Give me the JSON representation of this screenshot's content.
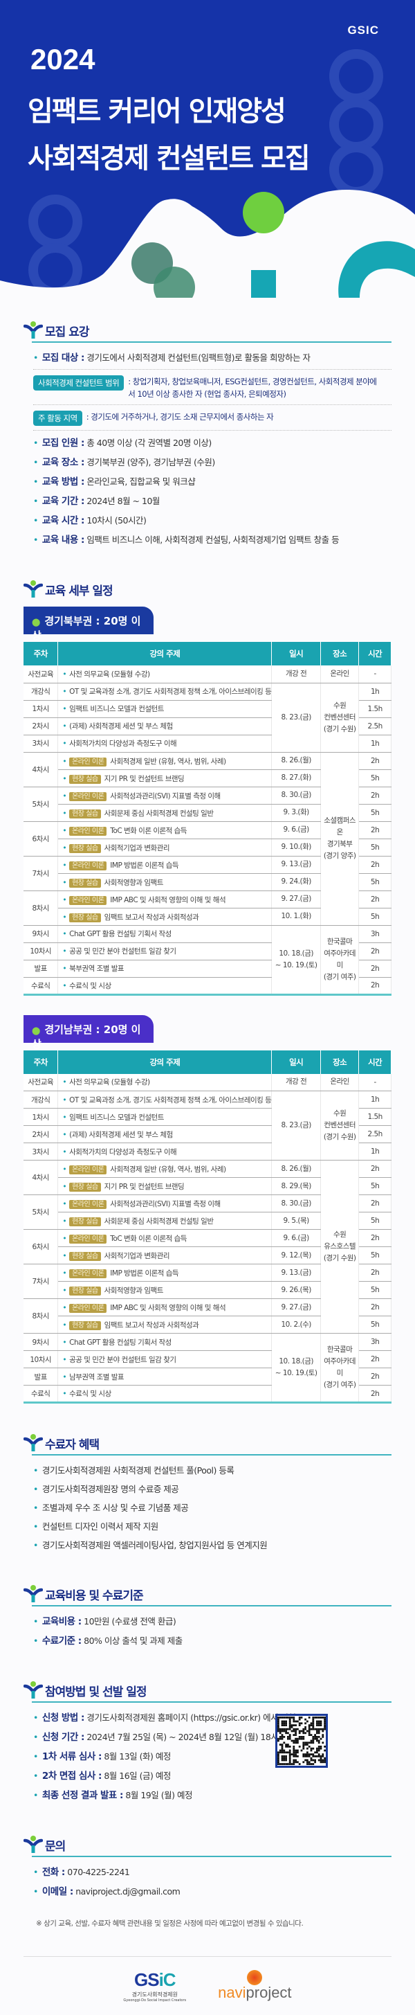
{
  "hero": {
    "logo": "GSIC",
    "year": "2024",
    "title_line1": "임팩트 커리어 인재양성",
    "title_line2": "사회적경제 컨설턴트 모집",
    "colors": {
      "bg": "#1533a8",
      "green": "#6fcf3f",
      "teal": "#16a6b4"
    }
  },
  "recruit": {
    "heading": "모집 요강",
    "target_label": "모집 대상 :",
    "target": "경기도에서 사회적경제 컨설턴트(임팩트형)로 활동을 희망하는 자",
    "scope_pill": "사회적경제 컨설턴트 범위",
    "scope": ": 창업기획자, 창업보육매니저, ESG컨설턴트, 경영컨설턴트, 사회적경제 분야에서 10년 이상 종사한 자 (현업 종사자, 은퇴예정자)",
    "area_pill": "주 활동 지역",
    "area": ": 경기도에 거주하거나, 경기도 소재 근무지에서 종사하는 자",
    "items": [
      {
        "label": "모집 인원 :",
        "value": "총 40명 이상 (각 권역별 20명 이상)"
      },
      {
        "label": "교육 장소 :",
        "value": "경기북부권 (양주), 경기남부권 (수원)"
      },
      {
        "label": "교육 방법 :",
        "value": "온라인교육, 집합교육 및 워크샵"
      },
      {
        "label": "교육 기간 :",
        "value": "2024년 8월 ~ 10월"
      },
      {
        "label": "교육 시간 :",
        "value": "10차시 (50시간)"
      },
      {
        "label": "교육 내용 :",
        "value": "임팩트 비즈니스 이해, 사회적경제 컨설팅, 사회적경제기업 임팩트 창출 등"
      }
    ]
  },
  "schedule": {
    "heading": "교육 세부 일정",
    "columns": [
      "주차",
      "강의 주제",
      "일시",
      "장소",
      "시간"
    ],
    "tables": [
      {
        "tab": "경기북부권 : 20명 이상",
        "tab_color": "#1a3aa0",
        "rows": [
          {
            "week": "사전교육",
            "topic": "사전 의무교육 (모듈형 수강)",
            "date": "개강 전",
            "place": "온라인",
            "hours": "-"
          },
          {
            "week": "개강식",
            "topic": "OT 및 교육과정 소개, 경기도 사회적경제 정책 소개, 아이스브레이킹 등",
            "date": "8. 23.(금)",
            "place": "수원\n컨벤션센터\n(경기 수원)",
            "hours": "1h"
          },
          {
            "week": "1차시",
            "topic": "임팩트 비즈니스 모델과 컨설턴트",
            "date": "8. 23.(금)",
            "place": "수원\n컨벤션센터\n(경기 수원)",
            "hours": "1.5h"
          },
          {
            "week": "2차시",
            "topic": "(과제) 사회적경제 세션 및 부스 체험",
            "date": "8. 23.(금)",
            "place": "수원\n컨벤션센터\n(경기 수원)",
            "hours": "2.5h"
          },
          {
            "week": "3차시",
            "topic": "사회적가치의 다양성과 측정도구 이해",
            "date": "8. 23.(금)",
            "place": "수원\n컨벤션센터\n(경기 수원)",
            "hours": "1h"
          },
          {
            "week": "4차시",
            "tag": "온라인 이론",
            "topic": "사회적경제 일반 (유형, 역사, 범위, 사례)",
            "date": "8. 26.(월)",
            "place": "소셜캠퍼스 온\n경기북부\n(경기 양주)",
            "hours": "2h"
          },
          {
            "week": "4차시",
            "tag": "현장 실습",
            "topic": "지기 PR 및 컨설턴트 브랜딩",
            "date": "8. 27.(화)",
            "place": "소셜캠퍼스 온\n경기북부\n(경기 양주)",
            "hours": "5h"
          },
          {
            "week": "5차시",
            "tag": "온라인 이론",
            "topic": "사회적성과관리(SVI) 지표별 측정 이해",
            "date": "8. 30.(금)",
            "place": "소셜캠퍼스 온\n경기북부\n(경기 양주)",
            "hours": "2h"
          },
          {
            "week": "5차시",
            "tag": "현장 실습",
            "topic": "사회문제 중심 사회적경제 컨설팅 일반",
            "date": "9. 3.(화)",
            "place": "소셜캠퍼스 온\n경기북부\n(경기 양주)",
            "hours": "5h"
          },
          {
            "week": "6차시",
            "tag": "온라인 이론",
            "topic": "ToC 변화 이론 이론적 습득",
            "date": "9. 6.(금)",
            "place": "소셜캠퍼스 온\n경기북부\n(경기 양주)",
            "hours": "2h"
          },
          {
            "week": "6차시",
            "tag": "현장 실습",
            "topic": "사회적기업과 변화관리",
            "date": "9. 10.(화)",
            "place": "소셜캠퍼스 온\n경기북부\n(경기 양주)",
            "hours": "5h"
          },
          {
            "week": "7차시",
            "tag": "온라인 이론",
            "topic": "IMP 방법론 이론적 습득",
            "date": "9. 13.(금)",
            "place": "소셜캠퍼스 온\n경기북부\n(경기 양주)",
            "hours": "2h"
          },
          {
            "week": "7차시",
            "tag": "현장 실습",
            "topic": "사회적영향과 임팩트",
            "date": "9. 24.(화)",
            "place": "소셜캠퍼스 온\n경기북부\n(경기 양주)",
            "hours": "5h"
          },
          {
            "week": "8차시",
            "tag": "온라인 이론",
            "topic": "IMP ABC 및 사회적 영향의 이해 및 해석",
            "date": "9. 27.(금)",
            "place": "소셜캠퍼스 온\n경기북부\n(경기 양주)",
            "hours": "2h"
          },
          {
            "week": "8차시",
            "tag": "현장 실습",
            "topic": "임팩트 보고서 작성과 사회적성과",
            "date": "10. 1.(화)",
            "place": "소셜캠퍼스 온\n경기북부\n(경기 양주)",
            "hours": "5h"
          },
          {
            "week": "9차시",
            "topic": "Chat GPT 활용 컨설팅 기획서 작성",
            "date": "10. 18.(금)\n~ 10. 19.(토)",
            "place": "한국콜마\n여주아카데미\n(경기 여주)",
            "hours": "3h"
          },
          {
            "week": "10차시",
            "topic": "공공 및 민간 분야 컨설턴트 일감 찾기",
            "date": "10. 18.(금)\n~ 10. 19.(토)",
            "place": "한국콜마\n여주아카데미\n(경기 여주)",
            "hours": "2h"
          },
          {
            "week": "발표",
            "topic": "북부권역 조별 발표",
            "date": "10. 18.(금)\n~ 10. 19.(토)",
            "place": "한국콜마\n여주아카데미\n(경기 여주)",
            "hours": "2h"
          },
          {
            "week": "수료식",
            "topic": "수료식 및 시상",
            "date": "10. 18.(금)\n~ 10. 19.(토)",
            "place": "한국콜마\n여주아카데미\n(경기 여주)",
            "hours": "2h"
          }
        ]
      },
      {
        "tab": "경기남부권 : 20명 이상",
        "tab_color": "#4a2fc8",
        "rows": [
          {
            "week": "사전교육",
            "topic": "사전 의무교육 (모듈형 수강)",
            "date": "개강 전",
            "place": "온라인",
            "hours": "-"
          },
          {
            "week": "개강식",
            "topic": "OT 및 교육과정 소개, 경기도 사회적경제 정책 소개, 아이스브레이킹 등",
            "date": "8. 23.(금)",
            "place": "수원\n컨벤션센터\n(경기 수원)",
            "hours": "1h"
          },
          {
            "week": "1차시",
            "topic": "임팩트 비즈니스 모델과 컨설턴트",
            "date": "8. 23.(금)",
            "place": "수원\n컨벤션센터\n(경기 수원)",
            "hours": "1.5h"
          },
          {
            "week": "2차시",
            "topic": "(과제) 사회적경제 세션 및 부스 체험",
            "date": "8. 23.(금)",
            "place": "수원\n컨벤션센터\n(경기 수원)",
            "hours": "2.5h"
          },
          {
            "week": "3차시",
            "topic": "사회적가치의 다양성과 측정도구 이해",
            "date": "8. 23.(금)",
            "place": "수원\n컨벤션센터\n(경기 수원)",
            "hours": "1h"
          },
          {
            "week": "4차시",
            "tag": "온라인 이론",
            "topic": "사회적경제 일반 (유형, 역사, 범위, 사례)",
            "date": "8. 26.(월)",
            "place": "수원\n유스호스텔\n(경기 수원)",
            "hours": "2h"
          },
          {
            "week": "4차시",
            "tag": "현장 실습",
            "topic": "지기 PR 및 컨설턴트 브랜딩",
            "date": "8. 29.(목)",
            "place": "수원\n유스호스텔\n(경기 수원)",
            "hours": "5h"
          },
          {
            "week": "5차시",
            "tag": "온라인 이론",
            "topic": "사회적성과관리(SVI) 지표별 측정 이해",
            "date": "8. 30.(금)",
            "place": "수원\n유스호스텔\n(경기 수원)",
            "hours": "2h"
          },
          {
            "week": "5차시",
            "tag": "현장 실습",
            "topic": "사회문제 중심 사회적경제 컨설팅 일반",
            "date": "9. 5.(목)",
            "place": "수원\n유스호스텔\n(경기 수원)",
            "hours": "5h"
          },
          {
            "week": "6차시",
            "tag": "온라인 이론",
            "topic": "ToC 변화 이론 이론적 습득",
            "date": "9. 6.(금)",
            "place": "수원\n유스호스텔\n(경기 수원)",
            "hours": "2h"
          },
          {
            "week": "6차시",
            "tag": "현장 실습",
            "topic": "사회적기업과 변화관리",
            "date": "9. 12.(목)",
            "place": "수원\n유스호스텔\n(경기 수원)",
            "hours": "5h"
          },
          {
            "week": "7차시",
            "tag": "온라인 이론",
            "topic": "IMP 방법론 이론적 습득",
            "date": "9. 13.(금)",
            "place": "수원\n유스호스텔\n(경기 수원)",
            "hours": "2h"
          },
          {
            "week": "7차시",
            "tag": "현장 실습",
            "topic": "사회적영향과 임팩트",
            "date": "9. 26.(목)",
            "place": "수원\n유스호스텔\n(경기 수원)",
            "hours": "5h"
          },
          {
            "week": "8차시",
            "tag": "온라인 이론",
            "topic": "IMP ABC 및 사회적 영향의 이해 및 해석",
            "date": "9. 27.(금)",
            "place": "수원\n유스호스텔\n(경기 수원)",
            "hours": "2h"
          },
          {
            "week": "8차시",
            "tag": "현장 실습",
            "topic": "임팩트 보고서 작성과 사회적성과",
            "date": "10. 2.(수)",
            "place": "수원\n유스호스텔\n(경기 수원)",
            "hours": "5h"
          },
          {
            "week": "9차시",
            "topic": "Chat GPT 활용 컨설팅 기획서 작성",
            "date": "10. 18.(금)\n~ 10. 19.(토)",
            "place": "한국콜마\n여주아카데미\n(경기 여주)",
            "hours": "3h"
          },
          {
            "week": "10차시",
            "topic": "공공 및 민간 분야 컨설턴트 일감 찾기",
            "date": "10. 18.(금)\n~ 10. 19.(토)",
            "place": "한국콜마\n여주아카데미\n(경기 여주)",
            "hours": "2h"
          },
          {
            "week": "발표",
            "topic": "남부권역 조별 발표",
            "date": "10. 18.(금)\n~ 10. 19.(토)",
            "place": "한국콜마\n여주아카데미\n(경기 여주)",
            "hours": "2h"
          },
          {
            "week": "수료식",
            "topic": "수료식 및 시상",
            "date": "10. 18.(금)\n~ 10. 19.(토)",
            "place": "한국콜마\n여주아카데미\n(경기 여주)",
            "hours": "2h"
          }
        ]
      }
    ]
  },
  "benefits": {
    "heading": "수료자 혜택",
    "items": [
      "경기도사회적경제원 사회적경제 컨설턴트 풀(Pool) 등록",
      "경기도사회적경제원장 명의 수료증 제공",
      "조별과제 우수 조 시상 및 수료 기념품 제공",
      "컨설턴트 디자인 이력서 제작 지원",
      "경기도사회적경제원 액셀러레이팅사업, 창업지원사업 등 연계지원"
    ]
  },
  "cost": {
    "heading": "교육비용 및 수료기준",
    "items": [
      {
        "label": "교육비용 :",
        "value": "10만원 (수료생 전액 환급)"
      },
      {
        "label": "수료기준 :",
        "value": "80% 이상 출석 및 과제 제출"
      }
    ]
  },
  "apply": {
    "heading": "참여방법 및 선발 일정",
    "items": [
      {
        "label": "신청 방법 :",
        "value": "경기도사회적경제원 홈페이지 (https://gsic.or.kr) 에서 신청"
      },
      {
        "label": "신청 기간 :",
        "value": "2024년 7월 25일 (목) ~ 2024년 8월 12일 (월) 18시까지"
      },
      {
        "label": "1차 서류 심사 :",
        "value": "8월 13일 (화) 예정"
      },
      {
        "label": "2차 면접 심사 :",
        "value": "8월 16일 (금) 예정"
      },
      {
        "label": "최종 선정 결과 발표 :",
        "value": "8월 19일 (월) 예정"
      }
    ]
  },
  "contact": {
    "heading": "문의",
    "items": [
      {
        "label": "전화 :",
        "value": "070-4225-2241"
      },
      {
        "label": "이메일 :",
        "value": "naviproject.dj@gmail.com"
      }
    ],
    "note": "※ 상기 교육, 선발, 수료자 혜택 관련내용 및 일정은 사정에 따라 예고없이 변경될 수 있습니다."
  },
  "footer": {
    "gsic_logo": "GSIC",
    "gsic_name": "경기도사회적경제원",
    "gsic_sub": "Gyeonggi-Do Social Impact Creators",
    "navi_logo": "naviproject"
  }
}
